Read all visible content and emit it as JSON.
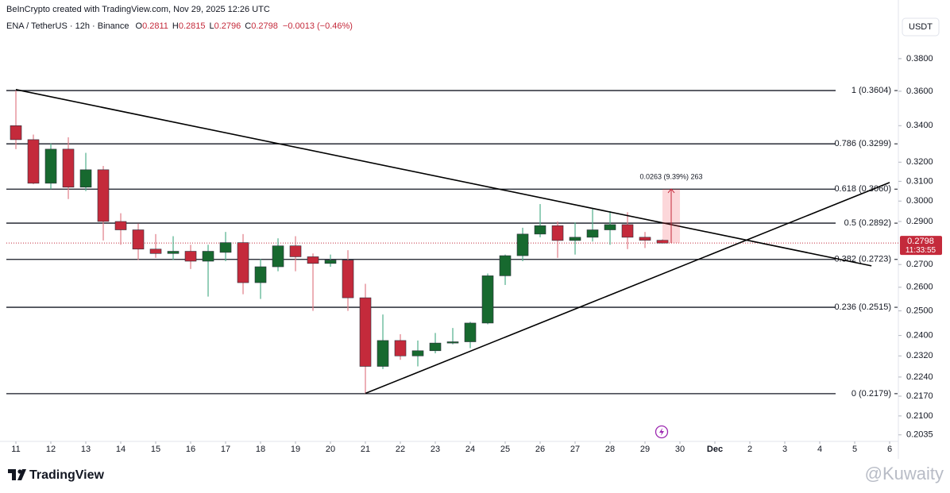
{
  "chart_data": {
    "type": "candlestick",
    "header": "BeInCrypto created with TradingView.com, Nov 29, 2025 12:26 UTC",
    "symbol": "ENA / TetherUS · 12h · Binance",
    "ohlc_labels": [
      "O",
      "H",
      "L",
      "C"
    ],
    "change": "−0.0013 (−0.46%)",
    "currency": "USDT",
    "log_scale": true,
    "up_color": "#17692f",
    "down_color": "#c42a3b",
    "up_wick": "#4fae8a",
    "down_wick": "#e07b86",
    "x": [
      11,
      11.5,
      12,
      12.5,
      13,
      13.5,
      14,
      14.5,
      15,
      15.5,
      16,
      16.5,
      17,
      17.5,
      18,
      18.5,
      19,
      19.5,
      20,
      20.5,
      21,
      21.5,
      22,
      22.5,
      23,
      23.5,
      24,
      24.5,
      25,
      25.5,
      26,
      26.5,
      27,
      27.5,
      28,
      28.5,
      29,
      29.5
    ],
    "open": [
      0.34,
      0.3322,
      0.309,
      0.327,
      0.307,
      0.316,
      0.29,
      0.286,
      0.277,
      0.275,
      0.276,
      0.2715,
      0.2755,
      0.28,
      0.262,
      0.269,
      0.2785,
      0.2735,
      0.2705,
      0.272,
      0.2555,
      0.228,
      0.238,
      0.232,
      0.234,
      0.237,
      0.2375,
      0.245,
      0.265,
      0.274,
      0.284,
      0.288,
      0.281,
      0.2825,
      0.286,
      0.2885,
      0.2825,
      0.2811
    ],
    "high": [
      0.3604,
      0.335,
      0.33,
      0.3335,
      0.325,
      0.318,
      0.294,
      0.289,
      0.284,
      0.283,
      0.279,
      0.279,
      0.285,
      0.284,
      0.2725,
      0.282,
      0.283,
      0.275,
      0.2745,
      0.2765,
      0.2615,
      0.2485,
      0.2405,
      0.238,
      0.241,
      0.243,
      0.2455,
      0.266,
      0.2745,
      0.287,
      0.2985,
      0.29,
      0.2895,
      0.296,
      0.295,
      0.2945,
      0.285,
      0.2815
    ],
    "low": [
      0.327,
      0.3085,
      0.306,
      0.301,
      0.305,
      0.281,
      0.279,
      0.272,
      0.273,
      0.272,
      0.268,
      0.256,
      0.2715,
      0.257,
      0.255,
      0.267,
      0.267,
      0.25,
      0.269,
      0.25,
      0.2179,
      0.227,
      0.2305,
      0.228,
      0.233,
      0.2365,
      0.235,
      0.2445,
      0.261,
      0.2715,
      0.2825,
      0.273,
      0.2745,
      0.2805,
      0.279,
      0.277,
      0.2775,
      0.2796
    ],
    "close": [
      0.3322,
      0.309,
      0.327,
      0.307,
      0.316,
      0.29,
      0.286,
      0.277,
      0.275,
      0.276,
      0.2715,
      0.276,
      0.28,
      0.262,
      0.269,
      0.2785,
      0.2735,
      0.2705,
      0.272,
      0.2555,
      0.228,
      0.238,
      0.232,
      0.234,
      0.237,
      0.2375,
      0.245,
      0.265,
      0.274,
      0.284,
      0.288,
      0.281,
      0.2825,
      0.286,
      0.2885,
      0.2825,
      0.2811,
      0.2798
    ],
    "xlim": [
      10.727,
      36.227
    ],
    "xticks": [
      11,
      12,
      13,
      14,
      15,
      16,
      17,
      18,
      19,
      20,
      21,
      22,
      23,
      24,
      25,
      26,
      27,
      28,
      29,
      30,
      {
        "value": 31,
        "label": "Dec"
      },
      {
        "value": 32,
        "label": "2"
      },
      {
        "value": 33,
        "label": "3"
      },
      {
        "value": 34,
        "label": "4"
      },
      {
        "value": 35,
        "label": "5"
      },
      {
        "value": 36,
        "label": "6"
      }
    ],
    "ylim": [
      0.2013,
      0.4069
    ],
    "yticks": [
      {
        "value": 0.38,
        "label": "0.3800"
      },
      {
        "value": 0.36,
        "label": "0.3600"
      },
      {
        "value": 0.34,
        "label": "0.3400"
      },
      {
        "value": 0.32,
        "label": "0.3200"
      },
      {
        "value": 0.31,
        "label": "0.3100"
      },
      {
        "value": 0.3,
        "label": "0.3000"
      },
      {
        "value": 0.29,
        "label": "0.2900"
      },
      {
        "value": 0.27,
        "label": "0.2700"
      },
      {
        "value": 0.26,
        "label": "0.2600"
      },
      {
        "value": 0.25,
        "label": "0.2500"
      },
      {
        "value": 0.24,
        "label": "0.2400"
      },
      {
        "value": 0.232,
        "label": "0.2320"
      },
      {
        "value": 0.224,
        "label": "0.2240"
      },
      {
        "value": 0.217,
        "label": "0.2170"
      },
      {
        "value": 0.21,
        "label": "0.2100"
      },
      0.2035
    ],
    "fib_levels": [
      {
        "value": 0.3604,
        "label": "1 (0.3604)"
      },
      {
        "value": 0.3299,
        "label": "0.786 (0.3299)"
      },
      {
        "value": 0.306,
        "label": "0.618 (0.3060)"
      },
      {
        "value": 0.2892,
        "label": "0.5 (0.2892)"
      },
      {
        "value": 0.2723,
        "label": "0.382 (0.2723)"
      },
      {
        "value": 0.2515,
        "label": "0.236 (0.2515)"
      },
      {
        "value": 0.2179,
        "label": "0 (0.2179)"
      }
    ],
    "trendlines": [
      {
        "x": [
          11,
          35.48
        ],
        "y": [
          0.361,
          0.2694
        ]
      },
      {
        "x": [
          21,
          36
        ],
        "y": [
          0.218,
          0.3094
        ]
      }
    ],
    "measure": {
      "label": "0.0263 (9.39%) 263",
      "x": [
        29.5,
        30
      ],
      "y": [
        0.2798,
        0.3061
      ]
    },
    "countdown": "11:33:55",
    "brand": "TradingView",
    "watermark": "@Kuwaity"
  }
}
